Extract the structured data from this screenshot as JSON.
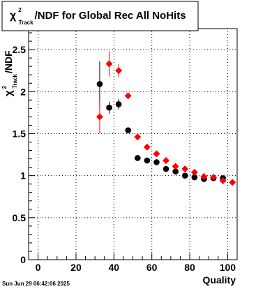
{
  "colors": {
    "series_black": "#000000",
    "series_red": "#ff0000",
    "background": "#ffffff"
  },
  "title": {
    "symbol": "χ",
    "sup": "2",
    "sub": "Track",
    "rest": "/NDF for Global Rec All NoHits"
  },
  "date_stamp": "Sun Jun 29 06:42:06 2025",
  "chart_data": {
    "type": "scatter",
    "title": "χ²_Track/NDF for Global Rec All NoHits",
    "xlabel": "Quality",
    "ylabel": "χ²_Track/NDF",
    "xlim": [
      -5,
      105
    ],
    "ylim": [
      0,
      2.75
    ],
    "x_ticks": [
      0,
      20,
      40,
      60,
      80,
      100
    ],
    "y_ticks": [
      0,
      0.5,
      1,
      1.5,
      2,
      2.5
    ],
    "x_tick_labels": [
      "0",
      "20",
      "40",
      "60",
      "80",
      "100"
    ],
    "y_tick_labels": [
      "0",
      "0.5",
      "1",
      "1.5",
      "2",
      "2.5"
    ],
    "grid": true,
    "series": [
      {
        "color": "#000000",
        "marker": "circle",
        "x": [
          32.5,
          37.5,
          42.5,
          47.5,
          52.5,
          57.5,
          62.5,
          67.5,
          72.5,
          77.5,
          82.5,
          87.5,
          92.5,
          97.5
        ],
        "y": [
          2.09,
          1.81,
          1.85,
          1.54,
          1.21,
          1.18,
          1.16,
          1.08,
          1.05,
          1.0,
          0.98,
          0.96,
          0.97,
          0.97
        ],
        "yerr": [
          0.27,
          0.07,
          0.06,
          0.02,
          0.015,
          0.015,
          0.015,
          0.015,
          0.01,
          0.01,
          0.01,
          0.01,
          0.01,
          0.01
        ]
      },
      {
        "color": "#ff0000",
        "marker": "diamond",
        "x": [
          32.5,
          37.5,
          42.5,
          47.5,
          52.5,
          57.5,
          62.5,
          67.5,
          72.5,
          77.5,
          82.5,
          87.5,
          92.5,
          97.5,
          102.5
        ],
        "y": [
          1.7,
          2.33,
          2.25,
          1.95,
          1.46,
          1.34,
          1.26,
          1.18,
          1.11,
          1.08,
          1.04,
          0.99,
          0.98,
          0.94,
          0.92
        ],
        "yerr": [
          0.2,
          0.15,
          0.08,
          0.03,
          0.02,
          0.02,
          0.015,
          0.015,
          0.01,
          0.01,
          0.01,
          0.01,
          0.01,
          0.01,
          0.01
        ]
      }
    ]
  }
}
